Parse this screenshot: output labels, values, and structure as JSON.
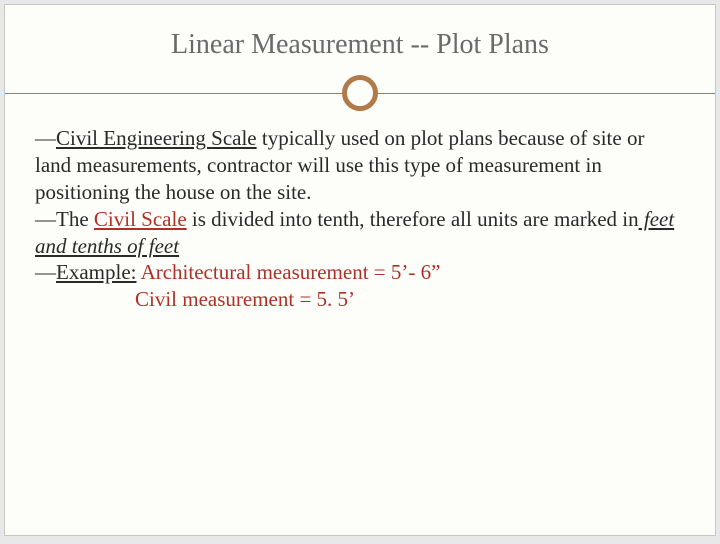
{
  "colors": {
    "background": "#e8e8e8",
    "slide_bg": "#fdfdfa",
    "slide_border": "#c8c8c0",
    "title_color": "#6a6a6a",
    "accent": "#b07a4a",
    "text": "#2a2a2a",
    "highlight": "#b03028"
  },
  "typography": {
    "title_fontsize": 28,
    "body_fontsize": 21,
    "font_family": "Georgia, serif"
  },
  "title": "Linear Measurement  -- Plot Plans",
  "bullets": {
    "b1": {
      "mark": "—",
      "seg1": "Civil Engineering Scale",
      "seg2": " typically used on plot plans because of site or land measurements, contractor will use this type of measurement in positioning the house on the site."
    },
    "b2": {
      "mark": "—",
      "seg1": "The ",
      "seg2": "Civil Scale",
      "seg3": " is divided into tenth, therefore all units are marked in",
      "seg4": " feet and tenths of feet"
    },
    "b3": {
      "mark": "—",
      "seg1": "Example:",
      "seg2": "  Architectural measurement = 5’- 6”",
      "seg3": "Civil measurement  = 5. 5’"
    }
  }
}
